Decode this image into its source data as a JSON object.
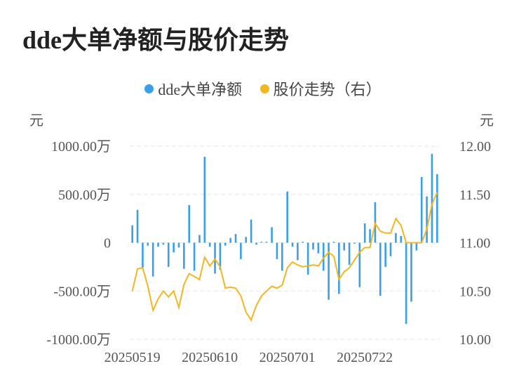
{
  "title": "dde大单净额与股价走势",
  "legend": [
    {
      "label": "dde大单净额",
      "color": "#3a9fe6"
    },
    {
      "label": "股价走势（右）",
      "color": "#f2b620"
    }
  ],
  "axes": {
    "left_unit": "元",
    "right_unit": "元"
  },
  "chart_data": {
    "type": "bar+line",
    "x": [
      "20250519",
      "20250520",
      "20250521",
      "20250522",
      "20250523",
      "20250526",
      "20250527",
      "20250528",
      "20250529",
      "20250530",
      "20250603",
      "20250604",
      "20250605",
      "20250606",
      "20250609",
      "20250610",
      "20250611",
      "20250612",
      "20250613",
      "20250616",
      "20250617",
      "20250618",
      "20250619",
      "20250620",
      "20250623",
      "20250624",
      "20250625",
      "20250626",
      "20250627",
      "20250630",
      "20250701",
      "20250702",
      "20250703",
      "20250704",
      "20250707",
      "20250708",
      "20250709",
      "20250710",
      "20250711",
      "20250714",
      "20250715",
      "20250716",
      "20250717",
      "20250718",
      "20250721",
      "20250722",
      "20250723",
      "20250724",
      "20250725",
      "20250728",
      "20250729",
      "20250730",
      "20250731",
      "20250801",
      "20250804",
      "20250805",
      "20250806",
      "20250807",
      "20250808",
      "20250811"
    ],
    "x_ticks": [
      "20250519",
      "20250610",
      "20250701",
      "20250722"
    ],
    "series": [
      {
        "name": "dde大单净额",
        "axis": "left",
        "type": "bar",
        "unit": "万",
        "values": [
          180,
          340,
          -260,
          -30,
          -350,
          -40,
          -20,
          -250,
          -100,
          -50,
          -270,
          390,
          -290,
          80,
          890,
          -40,
          -320,
          -280,
          -30,
          50,
          90,
          -170,
          60,
          240,
          -20,
          10,
          10,
          160,
          -170,
          -290,
          530,
          -40,
          -180,
          10,
          -330,
          -70,
          -110,
          -290,
          -590,
          10,
          -530,
          -80,
          -230,
          -10,
          -460,
          200,
          140,
          420,
          -550,
          -250,
          -140,
          100,
          70,
          -840,
          -610,
          -80,
          680,
          480,
          920,
          710
        ]
      },
      {
        "name": "股价走势（右）",
        "axis": "right",
        "type": "line",
        "unit": "元",
        "values": [
          10.5,
          10.73,
          10.74,
          10.55,
          10.3,
          10.42,
          10.5,
          10.44,
          10.5,
          10.33,
          10.57,
          10.68,
          10.65,
          10.62,
          10.85,
          10.76,
          10.83,
          10.75,
          10.53,
          10.54,
          10.53,
          10.45,
          10.28,
          10.2,
          10.35,
          10.45,
          10.5,
          10.55,
          10.53,
          10.56,
          10.74,
          10.8,
          10.77,
          10.75,
          10.76,
          10.77,
          10.76,
          10.84,
          10.9,
          10.86,
          10.62,
          10.7,
          10.74,
          10.82,
          10.9,
          10.95,
          10.95,
          11.2,
          11.12,
          11.1,
          11.1,
          11.25,
          11.18,
          11.0,
          11.0,
          11.0,
          11.0,
          11.14,
          11.4,
          11.52
        ]
      }
    ],
    "left_axis": {
      "min": -1000,
      "max": 1000,
      "ticks": [
        "-1000.00万",
        "-500.00万",
        "0",
        "500.00万",
        "1000.00万"
      ]
    },
    "right_axis": {
      "min": 10.0,
      "max": 12.0,
      "ticks": [
        "10.00",
        "10.50",
        "11.00",
        "11.50",
        "12.00"
      ]
    },
    "grid": true,
    "legend_position": "top-center"
  }
}
